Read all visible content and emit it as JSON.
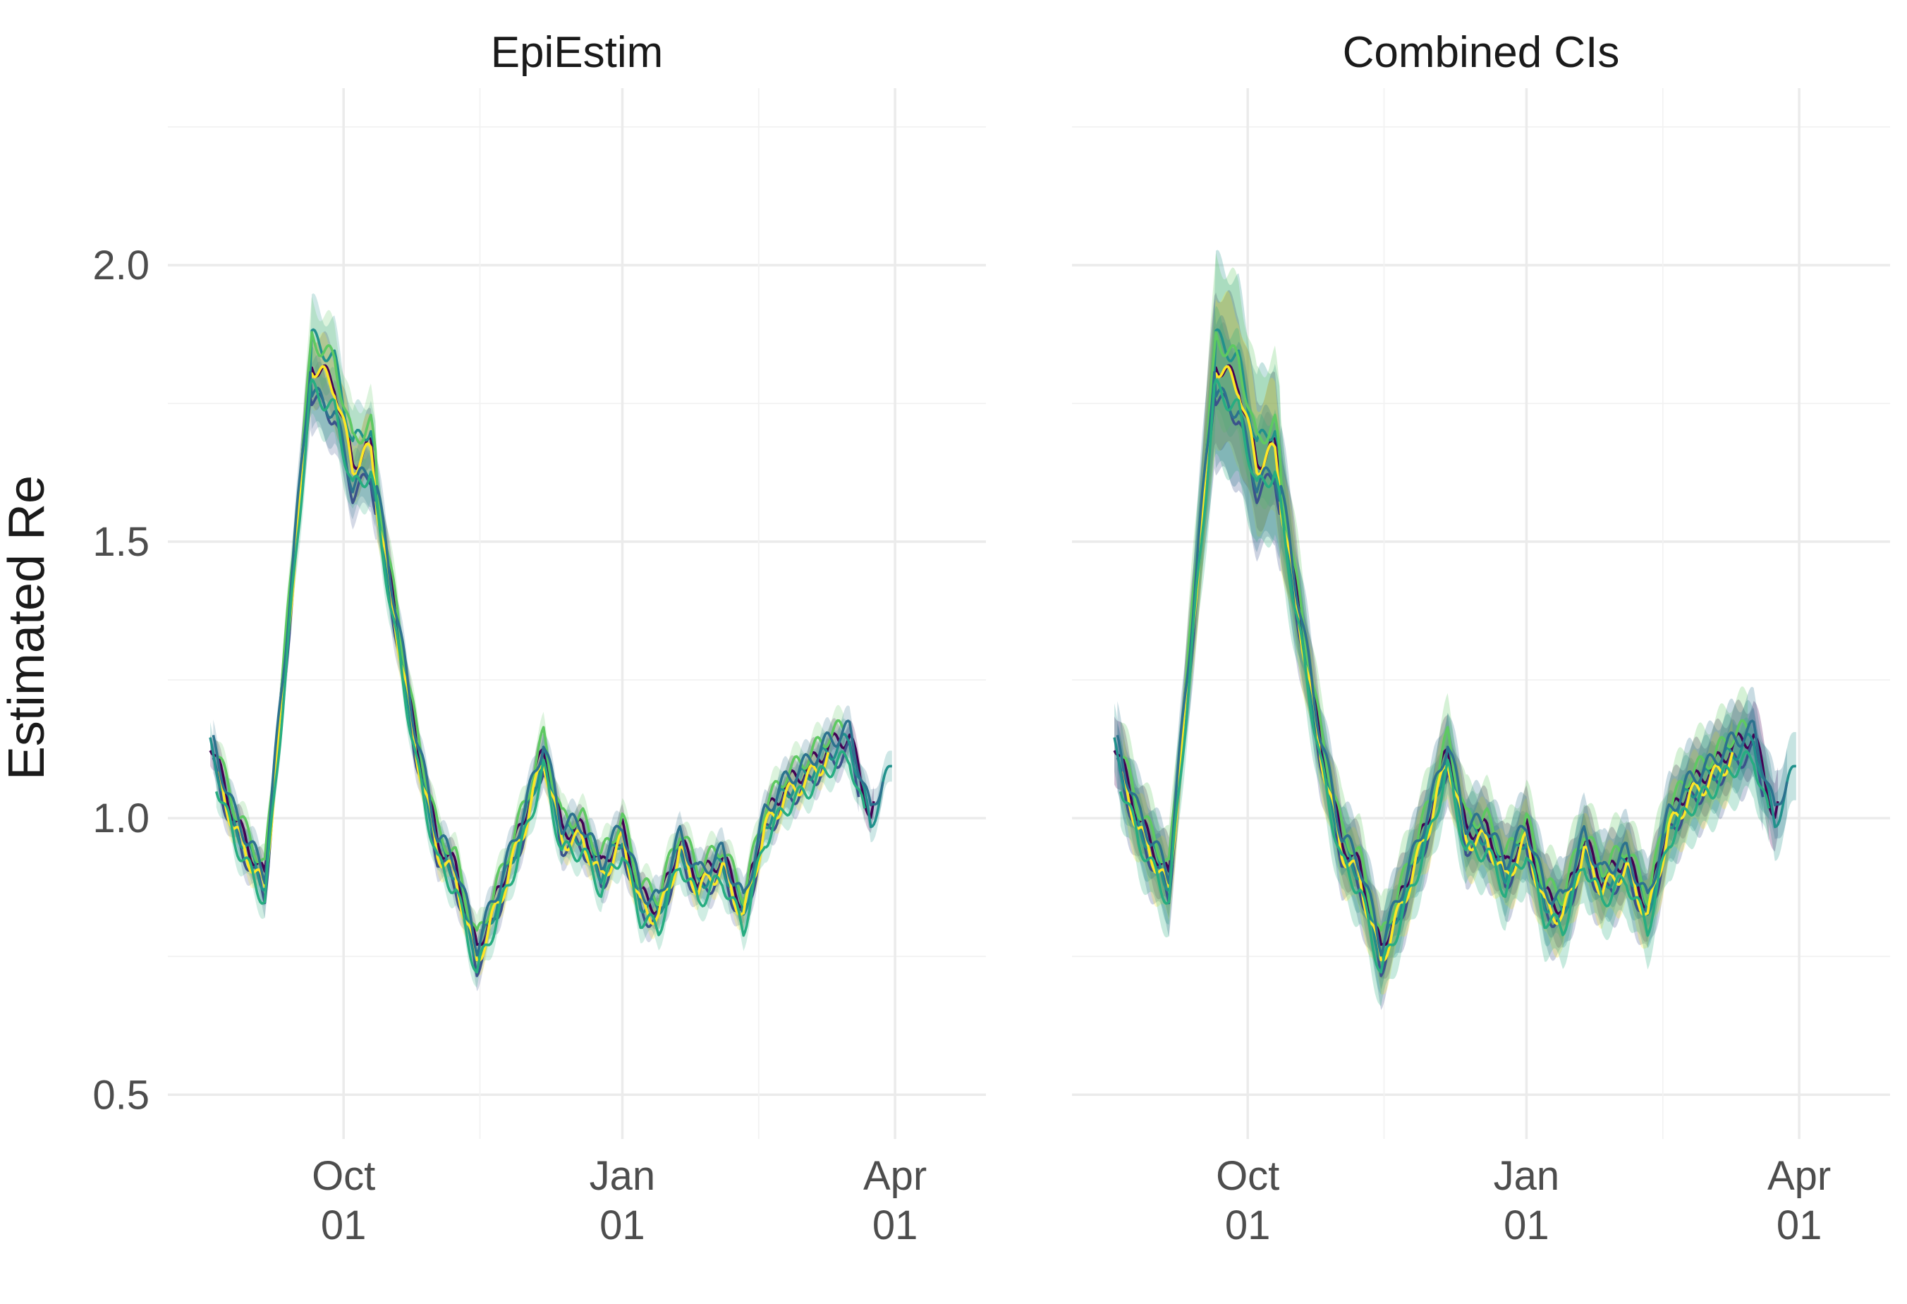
{
  "chart_data": {
    "type": "line",
    "ylabel": "Estimated Re",
    "xlabel": "",
    "ylim": [
      0.42,
      2.32
    ],
    "yticks": [
      0.5,
      1.0,
      1.5,
      2.0
    ],
    "ytick_labels": [
      "0.5",
      "1.0",
      "1.5",
      "2.0"
    ],
    "xlim": [
      "2020-08-04",
      "2021-05-01"
    ],
    "xticks": [
      {
        "date": "2020-10-01",
        "label_line1": "Oct",
        "label_line2": "01"
      },
      {
        "date": "2021-01-01",
        "label_line1": "Jan",
        "label_line2": "01"
      },
      {
        "date": "2021-04-01",
        "label_line1": "Apr",
        "label_line2": "01"
      }
    ],
    "minor_x_gridlines": [
      "2020-11-15",
      "2021-02-15"
    ],
    "palette": [
      "#440154",
      "#3b528b",
      "#21918c",
      "#5ec962",
      "#fde725",
      "#2c728e",
      "#27ad81"
    ],
    "panels": [
      {
        "title": "EpiEstim",
        "ribbon_opacity": 0.22,
        "ribbon_width_factor": 1.0
      },
      {
        "title": "Combined CIs",
        "ribbon_opacity": 0.26,
        "ribbon_width_factor": 2.2
      }
    ],
    "median_curve": {
      "x": [
        "2020-08-18",
        "2020-08-26",
        "2020-09-05",
        "2020-09-12",
        "2020-09-20",
        "2020-09-28",
        "2020-10-04",
        "2020-10-10",
        "2020-10-17",
        "2020-10-25",
        "2020-11-01",
        "2020-11-07",
        "2020-11-14",
        "2020-11-22",
        "2020-11-30",
        "2020-12-06",
        "2020-12-12",
        "2020-12-19",
        "2020-12-25",
        "2021-01-01",
        "2021-01-07",
        "2021-01-13",
        "2021-01-20",
        "2021-01-26",
        "2021-02-03",
        "2021-02-10",
        "2021-02-17",
        "2021-02-24",
        "2021-03-03",
        "2021-03-10",
        "2021-03-17",
        "2021-03-24",
        "2021-03-31"
      ],
      "y": [
        1.13,
        0.99,
        0.88,
        1.3,
        1.8,
        1.76,
        1.62,
        1.65,
        1.4,
        1.13,
        0.95,
        0.9,
        0.75,
        0.87,
        1.0,
        1.12,
        0.97,
        0.97,
        0.9,
        0.97,
        0.85,
        0.83,
        0.95,
        0.88,
        0.92,
        0.83,
        0.99,
        1.05,
        1.08,
        1.12,
        1.14,
        0.99,
        1.1
      ]
    },
    "series": [
      {
        "name": "",
        "color": "#440154",
        "start": "2020-08-18",
        "end": "2021-03-25",
        "offset": 0.01,
        "peak": 1.02
      },
      {
        "name": "",
        "color": "#3b528b",
        "start": "2020-08-19",
        "end": "2021-03-20",
        "offset": -0.02,
        "peak": 0.98
      },
      {
        "name": "",
        "color": "#21918c",
        "start": "2020-08-18",
        "end": "2021-03-31",
        "offset": 0.0,
        "peak": 1.09
      },
      {
        "name": "",
        "color": "#5ec962",
        "start": "2020-08-20",
        "end": "2021-03-15",
        "offset": 0.03,
        "peak": 1.05
      },
      {
        "name": "",
        "color": "#fde725",
        "start": "2020-08-21",
        "end": "2021-03-10",
        "offset": -0.01,
        "peak": 1.04
      },
      {
        "name": "",
        "color": "#2c728e",
        "start": "2020-08-19",
        "end": "2021-03-28",
        "offset": 0.02,
        "peak": 0.94
      },
      {
        "name": "",
        "color": "#27ad81",
        "start": "2020-08-20",
        "end": "2021-03-22",
        "offset": -0.03,
        "peak": 1.01
      }
    ]
  }
}
